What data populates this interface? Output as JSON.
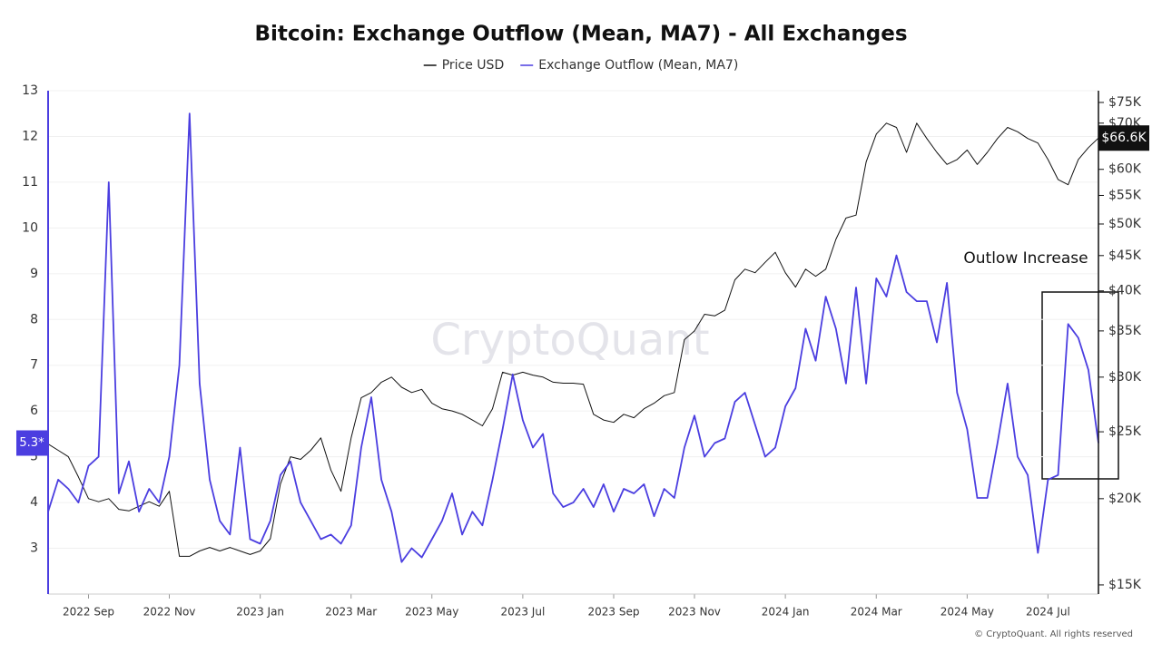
{
  "chart_data": {
    "type": "line",
    "title": "Bitcoin: Exchange Outflow (Mean, MA7) - All Exchanges",
    "watermark": "CryptoQuant",
    "copyright": "© CryptoQuant. All rights reserved",
    "annotation": "Outlow Increase",
    "categories": [
      null,
      null,
      null,
      null,
      "2022 Sep",
      null,
      null,
      null,
      null,
      null,
      null,
      null,
      "2022 Nov",
      null,
      null,
      null,
      null,
      null,
      null,
      null,
      null,
      "2023 Jan",
      null,
      null,
      null,
      null,
      null,
      null,
      null,
      null,
      "2023 Mar",
      null,
      null,
      null,
      null,
      null,
      null,
      null,
      "2023 May",
      null,
      null,
      null,
      null,
      null,
      null,
      null,
      null,
      "2023 Jul",
      null,
      null,
      null,
      null,
      null,
      null,
      null,
      null,
      "2023 Sep",
      null,
      null,
      null,
      null,
      null,
      null,
      null,
      "2023 Nov",
      null,
      null,
      null,
      null,
      null,
      null,
      null,
      null,
      "2024 Jan",
      null,
      null,
      null,
      null,
      null,
      null,
      null,
      null,
      "2024 Mar",
      null,
      null,
      null,
      null,
      null,
      null,
      null,
      null,
      "2024 May",
      null,
      null,
      null,
      null,
      null,
      null,
      null,
      "2024 Jul",
      null,
      null,
      null,
      null,
      null
    ],
    "ylim": [
      2,
      13
    ],
    "yticks": [
      3,
      4,
      5,
      6,
      7,
      8,
      9,
      10,
      11,
      12,
      13
    ],
    "y2lim": [
      14550,
      78000
    ],
    "y2log": true,
    "y2ticks": [
      {
        "value": 15000,
        "label": "$15K"
      },
      {
        "value": 20000,
        "label": "$20K"
      },
      {
        "value": 25000,
        "label": "$25K"
      },
      {
        "value": 30000,
        "label": "$30K"
      },
      {
        "value": 35000,
        "label": "$35K"
      },
      {
        "value": 40000,
        "label": "$40K"
      },
      {
        "value": 45000,
        "label": "$45K"
      },
      {
        "value": 50000,
        "label": "$50K"
      },
      {
        "value": 55000,
        "label": "$55K"
      },
      {
        "value": 60000,
        "label": "$60K"
      },
      {
        "value": 70000,
        "label": "$70K"
      },
      {
        "value": 75000,
        "label": "$75K"
      }
    ],
    "grid": true,
    "series": [
      {
        "name": "Price USD",
        "color": "#111111",
        "axis": "y2",
        "current_label": "$66.6K",
        "values": [
          24000,
          23500,
          23000,
          21500,
          20000,
          19800,
          20000,
          19300,
          19200,
          19500,
          19800,
          19500,
          20500,
          16500,
          16500,
          16800,
          17000,
          16800,
          17000,
          16800,
          16600,
          16800,
          17500,
          21000,
          23000,
          22800,
          23500,
          24500,
          22000,
          20500,
          24500,
          28000,
          28500,
          29500,
          30000,
          29000,
          28500,
          28800,
          27500,
          27000,
          26800,
          26500,
          26000,
          25500,
          27000,
          30500,
          30200,
          30500,
          30200,
          30000,
          29500,
          29400,
          29400,
          29300,
          26500,
          26000,
          25800,
          26500,
          26200,
          27000,
          27500,
          28200,
          28500,
          34000,
          35000,
          37000,
          36800,
          37500,
          41500,
          43000,
          42500,
          44000,
          45500,
          42500,
          40500,
          43000,
          42000,
          43000,
          47500,
          51000,
          51500,
          61500,
          67500,
          70000,
          69000,
          63500,
          70000,
          66500,
          63500,
          61000,
          62000,
          64000,
          61000,
          63500,
          66500,
          69000,
          68000,
          66500,
          65500,
          62000,
          58000,
          57000,
          62000,
          64500,
          66600
        ]
      },
      {
        "name": "Exchange Outflow (Mean, MA7)",
        "color": "#4b3ee0",
        "current_label": "5.3*",
        "values": [
          3.8,
          4.5,
          4.3,
          4.0,
          4.8,
          5.0,
          11.0,
          4.2,
          4.9,
          3.8,
          4.3,
          4.0,
          5.0,
          7.0,
          12.5,
          6.6,
          4.5,
          3.6,
          3.3,
          5.2,
          3.2,
          3.1,
          3.6,
          4.6,
          4.9,
          4.0,
          3.6,
          3.2,
          3.3,
          3.1,
          3.5,
          5.2,
          6.3,
          4.5,
          3.8,
          2.7,
          3.0,
          2.8,
          3.2,
          3.6,
          4.2,
          3.3,
          3.8,
          3.5,
          4.5,
          5.6,
          6.8,
          5.8,
          5.2,
          5.5,
          4.2,
          3.9,
          4.0,
          4.3,
          3.9,
          4.4,
          3.8,
          4.3,
          4.2,
          4.4,
          3.7,
          4.3,
          4.1,
          5.2,
          5.9,
          5.0,
          5.3,
          5.4,
          6.2,
          6.4,
          5.7,
          5.0,
          5.2,
          6.1,
          6.5,
          7.8,
          7.1,
          8.5,
          7.8,
          6.6,
          8.7,
          6.6,
          8.9,
          8.5,
          9.4,
          8.6,
          8.4,
          8.4,
          7.5,
          8.8,
          6.4,
          5.6,
          4.1,
          4.1,
          5.3,
          6.6,
          5.0,
          4.6,
          2.9,
          4.5,
          4.6,
          7.9,
          7.6,
          6.9,
          5.3
        ]
      }
    ]
  }
}
